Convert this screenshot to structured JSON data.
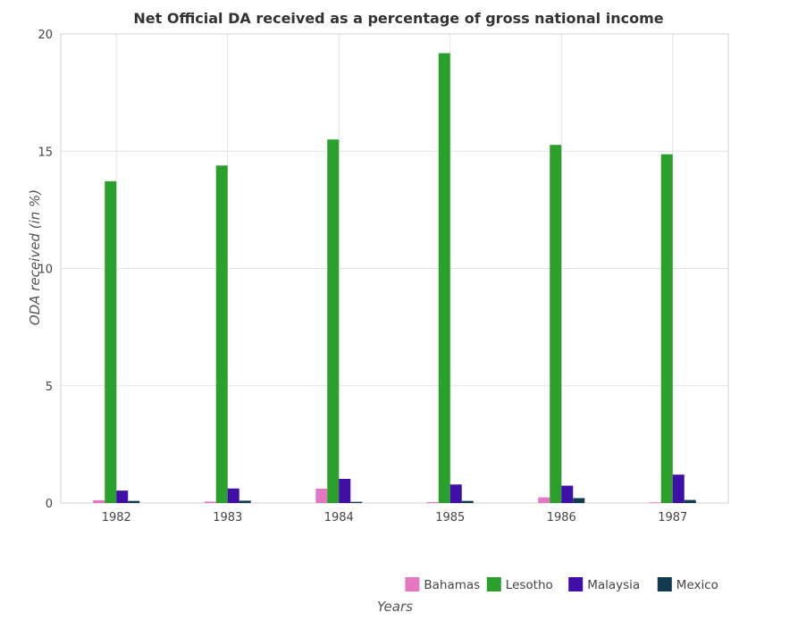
{
  "chart_data": {
    "type": "bar",
    "title": "Net Official DA received as a percentage of gross national income",
    "xlabel": "Years",
    "ylabel": "ODA received (in %)",
    "categories": [
      "1982",
      "1983",
      "1984",
      "1985",
      "1986",
      "1987"
    ],
    "ylim": [
      0,
      20
    ],
    "yticks": [
      0,
      5,
      10,
      15,
      20
    ],
    "grid": true,
    "legend_position": "bottom-right",
    "series": [
      {
        "name": "Bahamas",
        "color": "#e377c2",
        "values": [
          0.12,
          0.06,
          0.61,
          0.04,
          0.24,
          0.03
        ]
      },
      {
        "name": "Lesotho",
        "color": "#2ca02c",
        "values": [
          13.72,
          14.39,
          15.5,
          19.18,
          15.27,
          14.87
        ]
      },
      {
        "name": "Malaysia",
        "color": "#3f0fa8",
        "values": [
          0.53,
          0.62,
          1.03,
          0.79,
          0.74,
          1.21
        ]
      },
      {
        "name": "Mexico",
        "color": "#123a4e",
        "values": [
          0.09,
          0.1,
          0.05,
          0.09,
          0.21,
          0.13
        ]
      }
    ]
  }
}
